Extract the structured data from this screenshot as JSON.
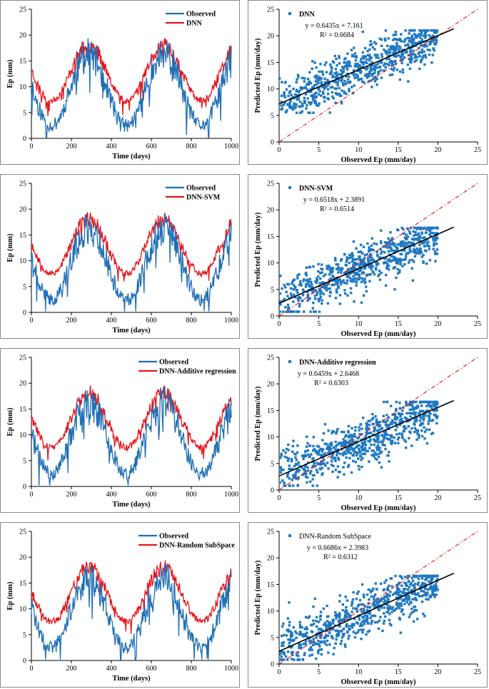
{
  "colors": {
    "observed": "#1f6fb5",
    "predicted": "#e8141b",
    "scatter": "#1f78c1",
    "fit": "#000000",
    "one_to_one": "#e8141b"
  },
  "chart_data": [
    {
      "id": "ts_dnn",
      "type": "line",
      "xlabel": "Time (days)",
      "ylabel": "Ep (mm)",
      "xlim": [
        0,
        1000
      ],
      "ylim": [
        0,
        25
      ],
      "xticks": [
        "0",
        "200",
        "400",
        "600",
        "800",
        "1000"
      ],
      "yticks": [
        "0",
        "5",
        "10",
        "15",
        "20",
        "25"
      ],
      "legend": [
        "Observed",
        "DNN"
      ],
      "series": [
        {
          "name": "Observed",
          "seed": 11,
          "peak": 16.5,
          "trough": 2.6,
          "noise": 4.2
        },
        {
          "name": "DNN",
          "seed": 23,
          "peak": 18.2,
          "trough": 7.4,
          "noise": 2.0
        }
      ]
    },
    {
      "id": "sc_dnn",
      "type": "scatter",
      "xlabel": "Observed Ep (mm/day)",
      "ylabel": "Predicted Ep (mm/day)",
      "xlim": [
        0,
        25
      ],
      "ylim": [
        0,
        25
      ],
      "xticks": [
        "0",
        "5",
        "10",
        "15",
        "20",
        "25"
      ],
      "yticks": [
        "0",
        "5",
        "10",
        "15",
        "20",
        "25"
      ],
      "legend": "DNN",
      "equation": "y = 0.6435x + 7.161",
      "r2": "R² = 0.6684",
      "slope": 0.6435,
      "intercept": 7.161,
      "fit_x": [
        0,
        22
      ],
      "seed": 31,
      "spread": 2.4
    },
    {
      "id": "ts_dnn_svm",
      "type": "line",
      "xlabel": "Time (days)",
      "ylabel": "Ep (mm)",
      "xlim": [
        0,
        1000
      ],
      "ylim": [
        0,
        25
      ],
      "xticks": [
        "0",
        "200",
        "400",
        "600",
        "800",
        "1000"
      ],
      "yticks": [
        "0",
        "5",
        "10",
        "15",
        "20",
        "25"
      ],
      "legend": [
        "Observed",
        "DNN-SVM"
      ],
      "series": [
        {
          "name": "Observed",
          "seed": 41,
          "peak": 16.5,
          "trough": 2.6,
          "noise": 4.2
        },
        {
          "name": "DNN-SVM",
          "seed": 53,
          "peak": 18.2,
          "trough": 7.6,
          "noise": 2.0
        }
      ]
    },
    {
      "id": "sc_dnn_svm",
      "type": "scatter",
      "xlabel": "Observed Ep (mm/day)",
      "ylabel": "Predicted Ep (mm/day)",
      "xlim": [
        0,
        25
      ],
      "ylim": [
        0,
        25
      ],
      "xticks": [
        "0",
        "5",
        "10",
        "15",
        "20",
        "25"
      ],
      "yticks": [
        "0",
        "5",
        "10",
        "15",
        "20",
        "25"
      ],
      "legend": "DNN-SVM",
      "equation": "y = 0.6518x + 2.3891",
      "r2": "R² = 0.6514",
      "slope": 0.6518,
      "intercept": 2.3891,
      "fit_x": [
        0,
        22
      ],
      "seed": 61,
      "spread": 2.6
    },
    {
      "id": "ts_dnn_add",
      "type": "line",
      "xlabel": "Time (days)",
      "ylabel": "Ep (mm)",
      "xlim": [
        0,
        1000
      ],
      "ylim": [
        0,
        25
      ],
      "xticks": [
        "0",
        "200",
        "400",
        "600",
        "800",
        "1000"
      ],
      "yticks": [
        "0",
        "5",
        "10",
        "15",
        "20",
        "25"
      ],
      "legend": [
        "Observed",
        "DNN-Additive regression"
      ],
      "series": [
        {
          "name": "Observed",
          "seed": 71,
          "peak": 16.5,
          "trough": 2.6,
          "noise": 4.2
        },
        {
          "name": "DNN-Additive regression",
          "seed": 83,
          "peak": 18.2,
          "trough": 7.6,
          "noise": 2.0
        }
      ]
    },
    {
      "id": "sc_dnn_add",
      "type": "scatter",
      "xlabel": "Observed Ep (mm/day)",
      "ylabel": "Predicted Ep (mm/day)",
      "xlim": [
        0,
        25
      ],
      "ylim": [
        0,
        25
      ],
      "xticks": [
        "0",
        "5",
        "10",
        "15",
        "20",
        "25"
      ],
      "yticks": [
        "0",
        "5",
        "10",
        "15",
        "20",
        "25"
      ],
      "legend": "DNN-Additive regression",
      "equation": "y = 0.6459x + 2.6468",
      "r2": "R² = 0.6303",
      "slope": 0.6459,
      "intercept": 2.6468,
      "fit_x": [
        0,
        22
      ],
      "seed": 91,
      "spread": 2.7
    },
    {
      "id": "ts_dnn_rss",
      "type": "line",
      "xlabel": "Time (days)",
      "ylabel": "Ep (mm)",
      "xlim": [
        0,
        1000
      ],
      "ylim": [
        0,
        25
      ],
      "xticks": [
        "0",
        "200",
        "400",
        "600",
        "800",
        "1000"
      ],
      "yticks": [
        "0",
        "5",
        "10",
        "15",
        "20",
        "25"
      ],
      "legend": [
        "Observed",
        "DNN-Random SubSpace"
      ],
      "series": [
        {
          "name": "Observed",
          "seed": 101,
          "peak": 16.5,
          "trough": 2.6,
          "noise": 4.2
        },
        {
          "name": "DNN-Random SubSpace",
          "seed": 113,
          "peak": 18.2,
          "trough": 7.6,
          "noise": 2.0
        }
      ]
    },
    {
      "id": "sc_dnn_rss",
      "type": "scatter",
      "xlabel": "Observed Ep (mm/day)",
      "ylabel": "Predicted Ep (mm/day)",
      "xlim": [
        0,
        25
      ],
      "ylim": [
        0,
        25
      ],
      "xticks": [
        "0",
        "5",
        "10",
        "15",
        "20",
        "25"
      ],
      "yticks": [
        "0",
        "5",
        "10",
        "15",
        "20",
        "25"
      ],
      "legend": "DNN-Random SubSpace",
      "equation": "y = 0.6686x + 2.3983",
      "r2": "R² = 0.6312",
      "slope": 0.6686,
      "intercept": 2.3983,
      "fit_x": [
        0,
        22
      ],
      "seed": 121,
      "spread": 2.7
    }
  ]
}
